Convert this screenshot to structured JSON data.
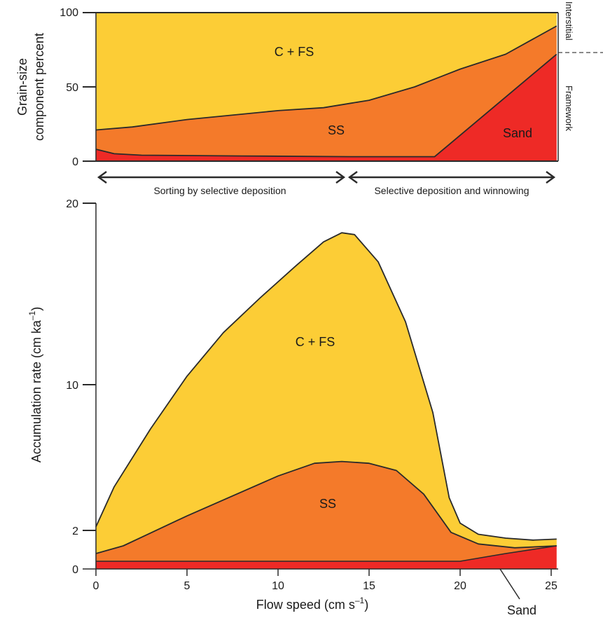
{
  "colors": {
    "cfs": "#fccd36",
    "ss": "#f47a2a",
    "sand": "#ee2a26",
    "line": "#2a2a2a"
  },
  "chart_data": [
    {
      "type": "area",
      "ylabel_line1": "Grain-size",
      "ylabel_line2": "component percent",
      "xlim": [
        0,
        25
      ],
      "ylim": [
        0,
        100
      ],
      "yticks": [
        "0",
        "50",
        "100"
      ],
      "note": "stacked percent of total",
      "boundaries": {
        "sand_top": [
          [
            0,
            8
          ],
          [
            1,
            5
          ],
          [
            2.5,
            4
          ],
          [
            8,
            3.5
          ],
          [
            14,
            3
          ],
          [
            18.6,
            3
          ],
          [
            25.3,
            72
          ]
        ],
        "ss_top": [
          [
            0,
            21
          ],
          [
            2,
            23
          ],
          [
            5,
            28
          ],
          [
            10,
            34
          ],
          [
            12.5,
            36
          ],
          [
            14,
            39
          ],
          [
            15,
            41
          ],
          [
            17.5,
            50
          ],
          [
            20,
            62
          ],
          [
            22.5,
            72
          ],
          [
            25.3,
            91
          ]
        ],
        "total_top": [
          [
            0,
            100
          ],
          [
            25.3,
            100
          ]
        ]
      },
      "region_labels": {
        "cfs": "C + FS",
        "ss": "SS",
        "sand": "Sand"
      },
      "side_labels": {
        "interstitial": "Interstitial",
        "framework": "Framework"
      }
    },
    {
      "type": "area",
      "ylabel": "Accumulation rate (cm ka",
      "ylabel_sup": "–1",
      "ylabel_end": ")",
      "xlabel": "Flow speed (cm s",
      "xlabel_sup": "–1",
      "xlabel_end": ")",
      "xlim": [
        0,
        25
      ],
      "ylim": [
        0,
        20
      ],
      "xticks": [
        "0",
        "5",
        "10",
        "15",
        "20",
        "25"
      ],
      "yticks": [
        "0",
        "2",
        "10",
        "20"
      ],
      "boundaries": {
        "sand_top": [
          [
            0,
            0.4
          ],
          [
            10,
            0.4
          ],
          [
            20,
            0.4
          ],
          [
            22.5,
            0.8
          ],
          [
            25.3,
            1.2
          ]
        ],
        "ss_top": [
          [
            0,
            0.8
          ],
          [
            1.5,
            1.2
          ],
          [
            5,
            2.8
          ],
          [
            10,
            5.0
          ],
          [
            12,
            5.7
          ],
          [
            13.5,
            5.8
          ],
          [
            15,
            5.7
          ],
          [
            16.5,
            5.3
          ],
          [
            18,
            4.0
          ],
          [
            19.5,
            1.9
          ],
          [
            21,
            1.3
          ],
          [
            23,
            1.1
          ],
          [
            25.3,
            1.2
          ]
        ],
        "total_top": [
          [
            0,
            2.2
          ],
          [
            1,
            4.4
          ],
          [
            3,
            7.6
          ],
          [
            5,
            10.5
          ],
          [
            7,
            12.9
          ],
          [
            9,
            14.8
          ],
          [
            11,
            16.6
          ],
          [
            12.5,
            17.9
          ],
          [
            13.5,
            18.4
          ],
          [
            14.2,
            18.3
          ],
          [
            15.5,
            16.8
          ],
          [
            17,
            13.5
          ],
          [
            18.5,
            8.5
          ],
          [
            19.4,
            3.8
          ],
          [
            20,
            2.4
          ],
          [
            21,
            1.8
          ],
          [
            22.5,
            1.6
          ],
          [
            24,
            1.5
          ],
          [
            25.3,
            1.55
          ]
        ]
      },
      "region_labels": {
        "cfs": "C + FS",
        "ss": "SS",
        "sand": "Sand"
      }
    }
  ],
  "annotations": {
    "arrow_left_label": "Sorting by selective deposition",
    "arrow_right_label": "Selective deposition and winnowing"
  }
}
